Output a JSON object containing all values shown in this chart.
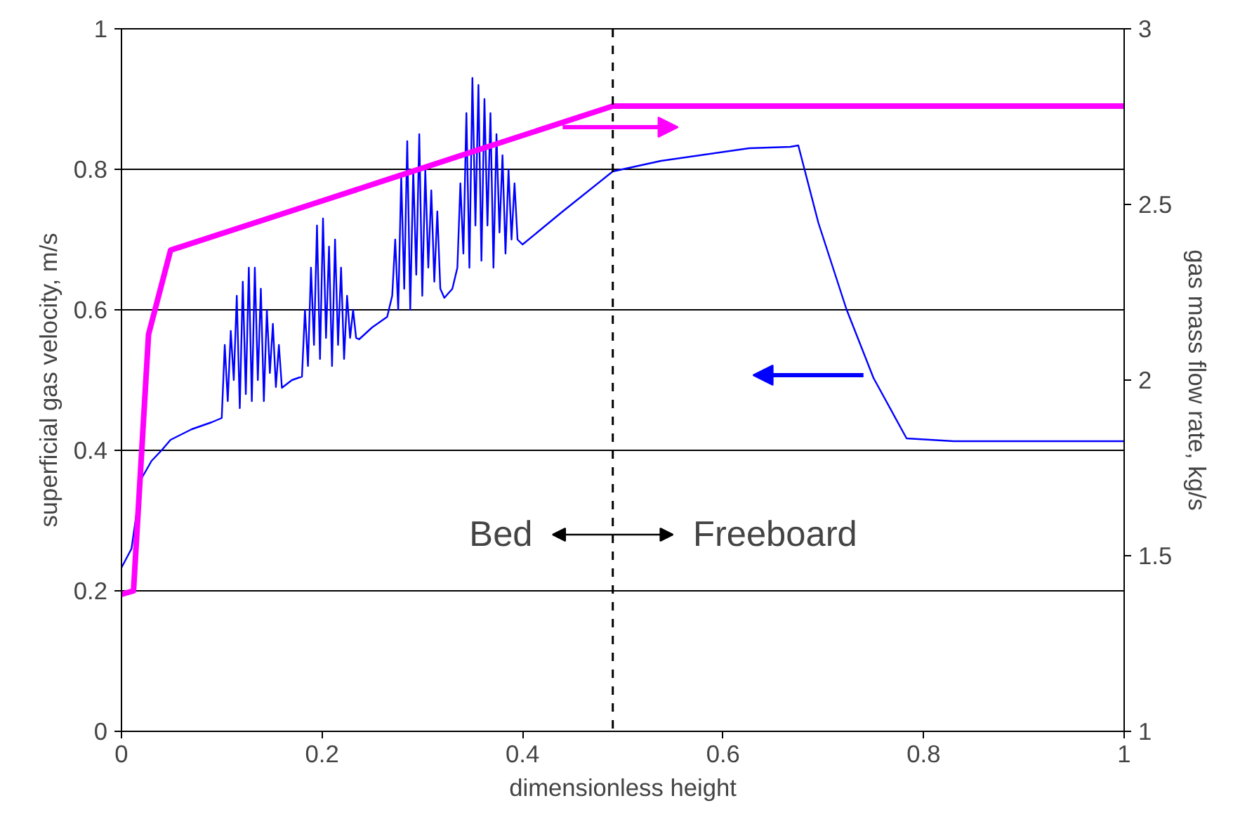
{
  "chart_data": {
    "type": "line",
    "xlabel": "dimensionless height",
    "ylabel": "superficial gas velocity, m/s",
    "y2label": "gas mass flow rate, kg/s",
    "xlim": [
      0,
      1
    ],
    "xticks": [
      0,
      0.2,
      0.4,
      0.6,
      0.8,
      1
    ],
    "ylim": [
      0,
      1
    ],
    "yticks": [
      0,
      0.2,
      0.4,
      0.6,
      0.8,
      1
    ],
    "y2lim": [
      1,
      3
    ],
    "y2ticks": [
      1,
      1.5,
      2,
      2.5,
      3
    ],
    "grid": "y",
    "line_style": "solid",
    "series": [
      {
        "color": "#0000ff",
        "x": [
          0,
          0.01,
          0.02,
          0.03,
          0.04,
          0.049,
          0.07,
          0.09,
          0.1,
          0.103,
          0.106,
          0.109,
          0.112,
          0.115,
          0.118,
          0.121,
          0.124,
          0.127,
          0.13,
          0.133,
          0.136,
          0.139,
          0.142,
          0.145,
          0.148,
          0.151,
          0.154,
          0.157,
          0.16,
          0.17,
          0.18,
          0.183,
          0.186,
          0.189,
          0.192,
          0.195,
          0.198,
          0.201,
          0.204,
          0.207,
          0.21,
          0.213,
          0.216,
          0.219,
          0.222,
          0.225,
          0.228,
          0.231,
          0.234,
          0.237,
          0.25,
          0.265,
          0.27,
          0.273,
          0.276,
          0.279,
          0.282,
          0.285,
          0.288,
          0.291,
          0.294,
          0.297,
          0.3,
          0.303,
          0.306,
          0.309,
          0.312,
          0.315,
          0.318,
          0.322,
          0.33,
          0.335,
          0.338,
          0.341,
          0.344,
          0.347,
          0.35,
          0.353,
          0.356,
          0.359,
          0.362,
          0.365,
          0.368,
          0.371,
          0.374,
          0.377,
          0.38,
          0.383,
          0.386,
          0.389,
          0.392,
          0.395,
          0.4,
          0.44,
          0.49,
          0.538,
          0.626,
          0.667,
          0.675,
          0.695,
          0.723,
          0.75,
          0.783,
          0.83,
          1
        ],
        "values": [
          0.233,
          0.26,
          0.36,
          0.385,
          0.4,
          0.415,
          0.43,
          0.44,
          0.446,
          0.55,
          0.47,
          0.57,
          0.5,
          0.62,
          0.46,
          0.64,
          0.48,
          0.66,
          0.47,
          0.66,
          0.5,
          0.63,
          0.47,
          0.6,
          0.51,
          0.58,
          0.49,
          0.55,
          0.489,
          0.5,
          0.505,
          0.6,
          0.52,
          0.66,
          0.55,
          0.72,
          0.53,
          0.73,
          0.56,
          0.69,
          0.52,
          0.7,
          0.55,
          0.66,
          0.53,
          0.62,
          0.56,
          0.6,
          0.56,
          0.558,
          0.575,
          0.59,
          0.62,
          0.7,
          0.6,
          0.79,
          0.63,
          0.84,
          0.6,
          0.8,
          0.65,
          0.85,
          0.62,
          0.8,
          0.66,
          0.77,
          0.64,
          0.74,
          0.63,
          0.617,
          0.63,
          0.66,
          0.78,
          0.68,
          0.88,
          0.66,
          0.93,
          0.72,
          0.92,
          0.67,
          0.9,
          0.72,
          0.88,
          0.66,
          0.85,
          0.71,
          0.82,
          0.68,
          0.8,
          0.7,
          0.78,
          0.7,
          0.693,
          0.74,
          0.797,
          0.812,
          0.83,
          0.832,
          0.834,
          0.724,
          0.601,
          0.503,
          0.417,
          0.413,
          0.413
        ]
      },
      {
        "color": "#ff00ff",
        "axis": "y2",
        "x": [
          0,
          0.012,
          0.027,
          0.049,
          0.2,
          0.35,
          0.49,
          1
        ],
        "values": [
          1.39,
          1.4,
          2.13,
          2.37,
          2.51,
          2.65,
          2.78,
          2.78
        ]
      }
    ],
    "ref_lines": [
      {
        "axis": "x",
        "value": 0.49,
        "line_style": "dashed",
        "color": "#000000"
      }
    ],
    "annotations": [
      "Bed",
      "Freeboard"
    ]
  }
}
